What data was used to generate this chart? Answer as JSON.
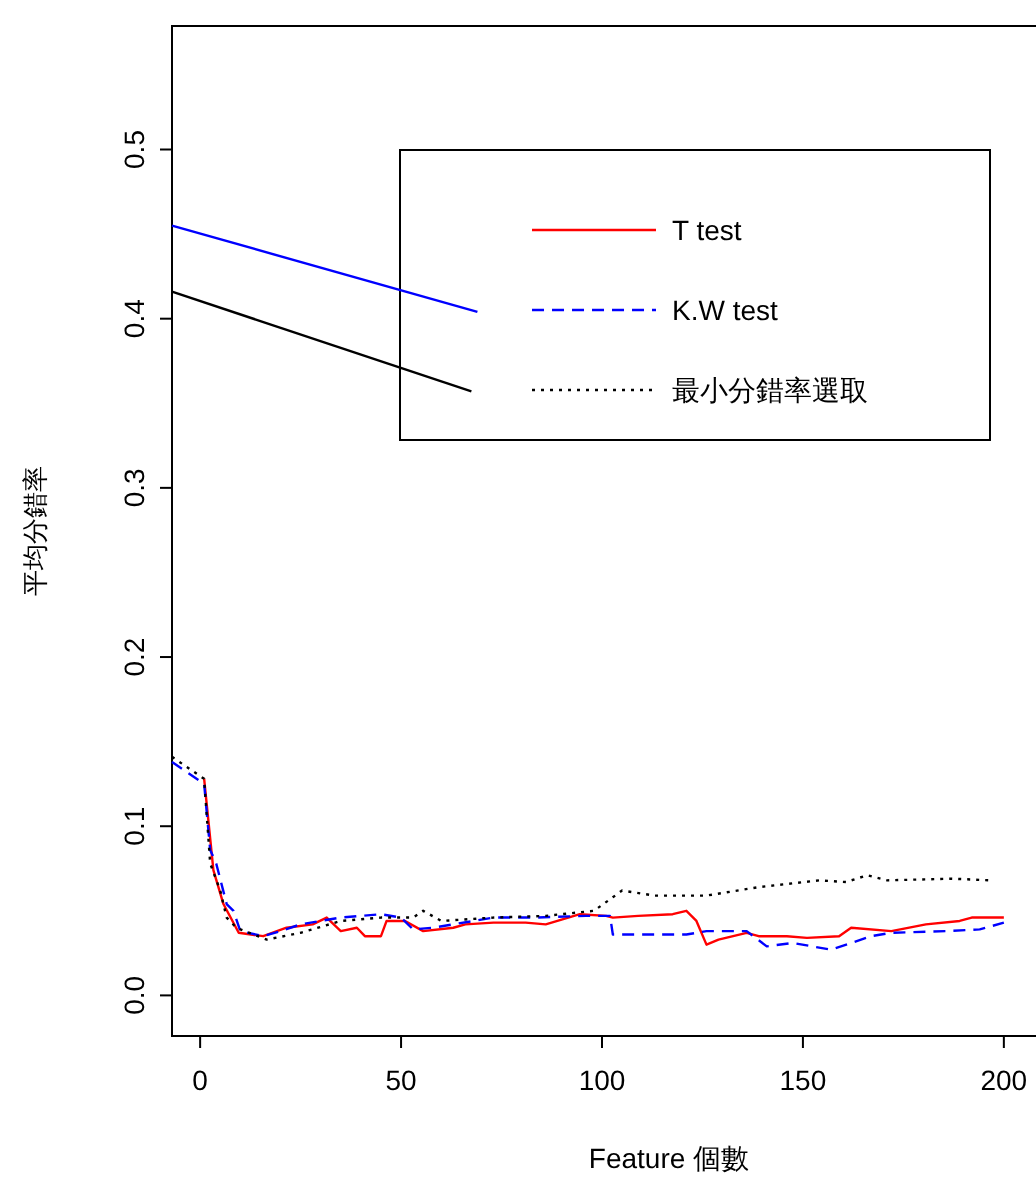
{
  "chart_data": {
    "type": "line",
    "xlabel": "Feature 個數",
    "ylabel": "平均分錯率",
    "xlim": [
      -7,
      208
    ],
    "ylim": [
      -0.024,
      0.573
    ],
    "xticks": [
      0,
      50,
      100,
      150,
      200
    ],
    "yticks": [
      {
        "value": 0,
        "label": "0.0"
      },
      {
        "value": 0.1,
        "label": "0.1"
      },
      {
        "value": 0.2,
        "label": "0.2"
      },
      {
        "value": 0.3,
        "label": "0.3"
      },
      {
        "value": 0.4,
        "label": "0.4"
      },
      {
        "value": 0.5,
        "label": "0.5"
      }
    ],
    "legend": "top right",
    "grid": false,
    "series": [
      {
        "name": "T test",
        "color": "#ff0000",
        "line_style": "solid",
        "x": [
          1,
          3.3,
          5.8,
          9.6,
          15.7,
          21.5,
          28,
          31.5,
          35,
          39,
          41,
          45,
          46.4,
          51,
          55.5,
          63,
          66,
          73,
          81,
          86,
          94.5,
          101,
          102.7,
          109,
          117.6,
          121,
          123.5,
          126,
          129,
          136,
          139,
          146,
          151,
          159,
          162,
          172,
          180.6,
          189,
          192,
          200
        ],
        "values": [
          0.128,
          0.074,
          0.054,
          0.037,
          0.035,
          0.04,
          0.042,
          0.046,
          0.038,
          0.04,
          0.035,
          0.035,
          0.044,
          0.044,
          0.038,
          0.04,
          0.042,
          0.043,
          0.043,
          0.042,
          0.048,
          0.047,
          0.046,
          0.047,
          0.048,
          0.05,
          0.044,
          0.03,
          0.033,
          0.037,
          0.035,
          0.035,
          0.034,
          0.035,
          0.04,
          0.038,
          0.042,
          0.044,
          0.046,
          0.046
        ]
      },
      {
        "name": "K.W test",
        "color": "#0000ff",
        "line_style": "dashed",
        "x": [
          -7,
          1,
          2.5,
          4,
          6.6,
          8.3,
          10,
          15.7,
          20,
          25,
          35,
          45,
          50,
          53,
          58,
          73,
          83,
          96,
          102,
          102.7,
          121,
          126,
          136,
          141,
          147.5,
          157,
          167,
          172,
          185.6,
          194,
          200
        ],
        "values": [
          0.138,
          0.125,
          0.086,
          0.078,
          0.054,
          0.05,
          0.038,
          0.035,
          0.038,
          0.042,
          0.046,
          0.048,
          0.046,
          0.039,
          0.04,
          0.046,
          0.046,
          0.047,
          0.047,
          0.036,
          0.036,
          0.038,
          0.038,
          0.029,
          0.031,
          0.027,
          0.035,
          0.037,
          0.038,
          0.039,
          0.043
        ]
      },
      {
        "name": "最小分錯率選取",
        "color": "#000000",
        "line_style": "dotted",
        "x": [
          -7,
          1,
          2.5,
          5,
          6.6,
          9,
          16.6,
          25,
          35,
          45,
          53,
          55.5,
          60,
          73,
          86,
          98,
          102.7,
          105,
          113,
          126,
          139,
          154,
          160.7,
          166,
          171,
          187,
          197
        ],
        "values": [
          0.141,
          0.128,
          0.078,
          0.062,
          0.046,
          0.04,
          0.033,
          0.037,
          0.044,
          0.046,
          0.046,
          0.05,
          0.044,
          0.046,
          0.047,
          0.05,
          0.058,
          0.062,
          0.059,
          0.059,
          0.064,
          0.068,
          0.067,
          0.071,
          0.068,
          0.069,
          0.068
        ]
      },
      {
        "color": "#0000ff",
        "line_style": "solid",
        "x": [
          -7,
          69
        ],
        "values": [
          0.455,
          0.404
        ]
      },
      {
        "color": "#000000",
        "line_style": "solid",
        "x": [
          -7,
          67.5
        ],
        "values": [
          0.416,
          0.357
        ]
      }
    ]
  }
}
